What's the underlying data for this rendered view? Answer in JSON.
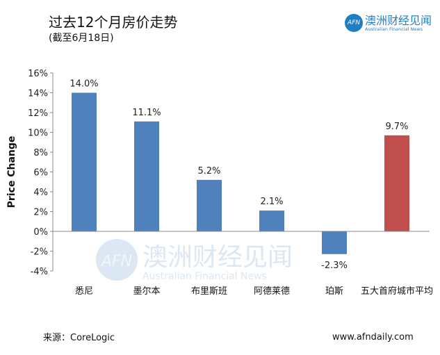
{
  "header": {
    "title": "过去12个月房价走势",
    "subtitle": "(截至6月18日)"
  },
  "logo": {
    "mark": "AFN",
    "cn": "澳洲财经见闻",
    "en": "Australian Financial News"
  },
  "footer": {
    "source": "来源：CoreLogic",
    "site": "www.afndaily.com"
  },
  "chart_data": {
    "type": "bar",
    "title": "过去12个月房价走势",
    "ylabel": "Price Change",
    "xlabel": "",
    "ylim": [
      -4,
      16
    ],
    "yticks": [
      16,
      14,
      12,
      10,
      8,
      6,
      4,
      2,
      0,
      -2,
      -4
    ],
    "ytick_labels": [
      "16%",
      "14%",
      "12%",
      "10%",
      "8%",
      "6%",
      "4%",
      "2%",
      "0%",
      "-2%",
      "-4%"
    ],
    "categories": [
      "悉尼",
      "墨尔本",
      "布里斯班",
      "阿德莱德",
      "珀斯",
      "五大首府城市平均"
    ],
    "values": [
      14.0,
      11.1,
      5.2,
      2.1,
      -2.3,
      9.7
    ],
    "data_labels": [
      "14.0%",
      "11.1%",
      "5.2%",
      "2.1%",
      "-2.3%",
      "9.7%"
    ],
    "colors": [
      "#4f81bd",
      "#4f81bd",
      "#4f81bd",
      "#4f81bd",
      "#4f81bd",
      "#c0504d"
    ],
    "grid": false,
    "watermark": {
      "mark": "AFN",
      "cn": "澳洲财经见闻",
      "en": "Australian Financial News"
    }
  }
}
